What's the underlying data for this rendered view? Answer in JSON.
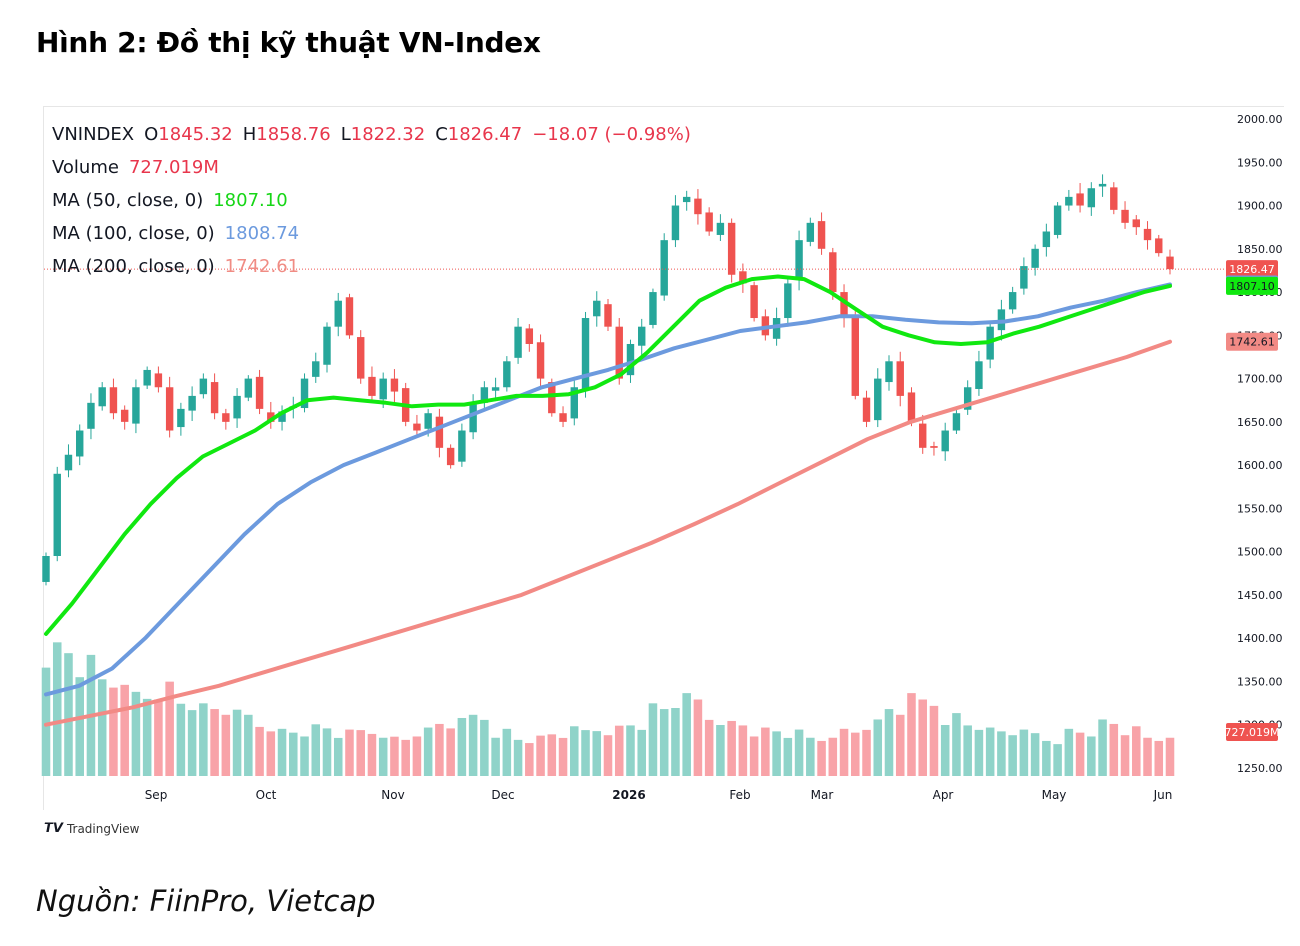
{
  "figure": {
    "title": "Hình 2: Đồ thị kỹ thuật VN-Index",
    "source": "Nguồn: FiinPro, Vietcap",
    "watermark": "TradingView"
  },
  "legend": {
    "symbol": "VNINDEX",
    "o_label": "O",
    "o_value": "1845.32",
    "h_label": "H",
    "h_value": "1858.76",
    "l_label": "L",
    "l_value": "1822.32",
    "c_label": "C",
    "c_value": "1826.47",
    "change": "−18.07 (−0.98%)",
    "volume_label": "Volume",
    "volume_value": "727.019M",
    "ma50_label": "MA (50, close, 0)",
    "ma50_value": "1807.10",
    "ma100_label": "MA (100, close, 0)",
    "ma100_value": "1808.74",
    "ma200_label": "MA (200, close, 0)",
    "ma200_value": "1742.61"
  },
  "colors": {
    "up": "#26a69a",
    "down": "#ef5350",
    "ma50": "#10e810",
    "ma100": "#6c9ade",
    "ma200": "#f28a85",
    "vol_up": "#8fd3c9",
    "vol_down": "#f8a3a8"
  },
  "chart_data": {
    "type": "candlestick",
    "price_axis": {
      "min": 1250,
      "max": 2000,
      "ticks": [
        "2000.00",
        "1950.00",
        "1900.00",
        "1850.00",
        "1800.00",
        "1750.00",
        "1700.00",
        "1650.00",
        "1600.00",
        "1550.00",
        "1500.00",
        "1450.00",
        "1400.00",
        "1350.00",
        "1300.00",
        "1250.00"
      ]
    },
    "x_labels": [
      "Sep",
      "Oct",
      "Nov",
      "Dec",
      "2026",
      "Feb",
      "Mar",
      "Apr",
      "May",
      "Jun"
    ],
    "last_price_labels": {
      "close": "1826.47",
      "ma100": "1808.74",
      "ma50": "1807.10",
      "ma200": "1742.61",
      "volume": "727.019M"
    },
    "close_path": [
      1495,
      1590,
      1612,
      1640,
      1672,
      1690,
      1660,
      1650,
      1690,
      1710,
      1690,
      1640,
      1665,
      1680,
      1700,
      1660,
      1650,
      1680,
      1700,
      1665,
      1650,
      1662,
      1668,
      1700,
      1720,
      1760,
      1790,
      1750,
      1700,
      1680,
      1700,
      1685,
      1650,
      1640,
      1660,
      1620,
      1600,
      1640,
      1670,
      1690,
      1690,
      1720,
      1760,
      1740,
      1700,
      1660,
      1650,
      1690,
      1770,
      1790,
      1760,
      1700,
      1740,
      1760,
      1800,
      1860,
      1900,
      1910,
      1890,
      1870,
      1880,
      1820,
      1810,
      1770,
      1750,
      1770,
      1810,
      1860,
      1880,
      1850,
      1800,
      1770,
      1680,
      1650,
      1700,
      1720,
      1680,
      1650,
      1620,
      1620,
      1640,
      1660,
      1690,
      1720,
      1760,
      1780,
      1800,
      1830,
      1850,
      1870,
      1900,
      1910,
      1900,
      1920,
      1925,
      1895,
      1880,
      1875,
      1860,
      1845,
      1826.47
    ],
    "ma50_path": [
      1405,
      1440,
      1480,
      1520,
      1555,
      1585,
      1610,
      1625,
      1640,
      1660,
      1675,
      1678,
      1675,
      1672,
      1668,
      1670,
      1670,
      1675,
      1680,
      1680,
      1682,
      1690,
      1705,
      1730,
      1760,
      1790,
      1805,
      1815,
      1818,
      1815,
      1800,
      1780,
      1760,
      1750,
      1742,
      1740,
      1742,
      1752,
      1760,
      1770,
      1780,
      1790,
      1800,
      1807.1
    ],
    "ma100_path": [
      1335,
      1345,
      1365,
      1400,
      1440,
      1480,
      1520,
      1555,
      1580,
      1600,
      1615,
      1630,
      1645,
      1660,
      1675,
      1690,
      1700,
      1710,
      1722,
      1735,
      1745,
      1755,
      1760,
      1765,
      1772,
      1772,
      1768,
      1765,
      1764,
      1766,
      1772,
      1782,
      1790,
      1800,
      1808.74
    ],
    "ma200_path": [
      1300,
      1310,
      1320,
      1333,
      1345,
      1360,
      1375,
      1390,
      1405,
      1420,
      1435,
      1450,
      1470,
      1490,
      1510,
      1532,
      1555,
      1580,
      1605,
      1630,
      1650,
      1665,
      1680,
      1695,
      1710,
      1725,
      1742.61
    ],
    "volume_path": [
      0.85,
      0.75,
      0.65,
      0.55,
      0.6,
      0.5,
      0.45,
      0.4,
      0.35,
      0.3,
      0.32,
      0.28,
      0.3,
      0.25,
      0.3,
      0.35,
      0.4,
      0.3,
      0.25,
      0.28,
      0.3,
      0.32,
      0.35,
      0.45,
      0.5,
      0.4,
      0.35,
      0.3,
      0.28,
      0.25,
      0.3,
      0.35,
      0.45,
      0.5,
      0.4,
      0.35,
      0.3,
      0.28,
      0.25,
      0.3,
      0.35,
      0.3,
      0.25,
      0.3
    ]
  }
}
